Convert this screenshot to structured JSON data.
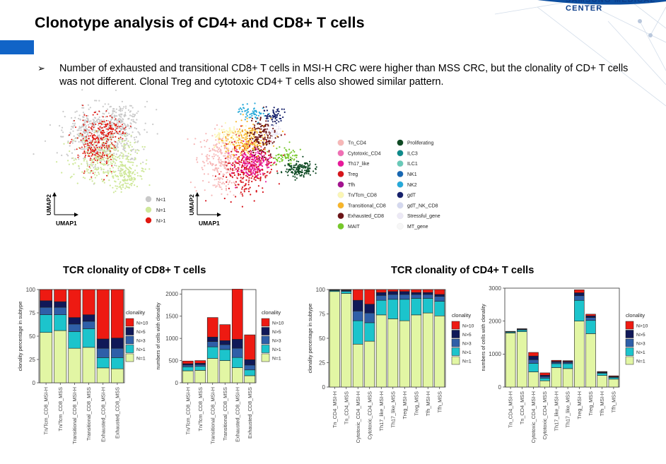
{
  "header": {
    "title": "Clonotype analysis of CD4+ and CD8+ T cells",
    "brand": "SAMSUNG MEDICAL CENTER",
    "bullet_symbol": "➢",
    "bullet_text": "Number of exhausted and transitional CD8+ T cells in MSI-H CRC were higher than MSS CRC, but the clonality of CD+ T cells was not different. Clonal Treg and cytotoxic CD4+ T cells also showed similar pattern."
  },
  "colors": {
    "N=1": "#e2f6a4",
    "N>1": "#1cc4cc",
    "N>3": "#2f5fa8",
    "N>5": "#101858",
    "N>10": "#ee1a12",
    "umap_gray": "#c9c9c9",
    "umap_green": "#cfe89a",
    "umap_red": "#e11810"
  },
  "umap": {
    "x_label": "UMAP1",
    "y_label": "UMAP2",
    "clonality_legend": [
      {
        "label": "N<1",
        "color": "#c9c9c9"
      },
      {
        "label": "N=1",
        "color": "#cfe89a"
      },
      {
        "label": "N>1",
        "color": "#e11810"
      }
    ],
    "celltype_legend_left": [
      {
        "label": "Tn_CD4",
        "color": "#f7b7b7"
      },
      {
        "label": "Cytotoxic_CD4",
        "color": "#f06fb4"
      },
      {
        "label": "Th17_like",
        "color": "#e8199a"
      },
      {
        "label": "Treg",
        "color": "#d7141b"
      },
      {
        "label": "Tfh",
        "color": "#a3128f"
      },
      {
        "label": "Tn/Tcm_CD8",
        "color": "#fbf6b4"
      },
      {
        "label": "Transitional_CD8",
        "color": "#f7b52a"
      },
      {
        "label": "Exhausted_CD8",
        "color": "#6b1417"
      },
      {
        "label": "MAIT",
        "color": "#76c82a"
      }
    ],
    "celltype_legend_right": [
      {
        "label": "Proliferating",
        "color": "#0f4a24"
      },
      {
        "label": "ILC3",
        "color": "#0e8a8a"
      },
      {
        "label": "ILC1",
        "color": "#68c9b8"
      },
      {
        "label": "NK1",
        "color": "#1767b2"
      },
      {
        "label": "NK2",
        "color": "#26a9d9"
      },
      {
        "label": "gdT",
        "color": "#15206b"
      },
      {
        "label": "gdT_NK_CD8",
        "color": "#d4d8ef"
      },
      {
        "label": "Stressful_gene",
        "color": "#ece9f6"
      },
      {
        "label": "MT_gene",
        "color": "#f7f7f7"
      }
    ]
  },
  "sections": {
    "cd8_title": "TCR clonality of CD8+ T cells",
    "cd4_title": "TCR clonality of CD4+ T cells"
  },
  "chart_data": [
    {
      "type": "bar",
      "stacked": true,
      "title": "TCR clonality of CD8+ T cells",
      "ylabel": "clonality percentage in subtype",
      "ylim": [
        0,
        100
      ],
      "yticks": [
        0,
        25,
        50,
        75,
        100
      ],
      "categories": [
        "Tn/Tcm_CD8_MSI-H",
        "Tn/Tcm_CD8_MSS",
        "Transitional_CD8_MSI-H",
        "Transitional_CD8_MSS",
        "Exhausted_CD8_MSI-H",
        "Exhausted_CD8_MSS"
      ],
      "legend_title": "clonality",
      "series": [
        {
          "name": "N=1",
          "values": [
            54,
            56,
            37,
            38,
            16,
            15
          ]
        },
        {
          "name": "N>1",
          "values": [
            19,
            17,
            18,
            20,
            11,
            12
          ]
        },
        {
          "name": "N>3",
          "values": [
            8,
            8,
            8,
            8,
            10,
            10
          ]
        },
        {
          "name": "N>5",
          "values": [
            7,
            6,
            7,
            7,
            10,
            11
          ]
        },
        {
          "name": "N>10",
          "values": [
            12,
            13,
            30,
            27,
            53,
            52
          ]
        }
      ]
    },
    {
      "type": "bar",
      "stacked": true,
      "title": "TCR clonality of CD8+ T cells",
      "ylabel": "numbers of cells with clonality",
      "ylim": [
        0,
        2100
      ],
      "yticks": [
        0,
        500,
        1000,
        1500,
        2000
      ],
      "categories": [
        "Tn/Tcm_CD8_MSI-H",
        "Tn/Tcm_CD8_MSS",
        "Transitional_CD8_MSI-H",
        "Transitional_CD8_MSS",
        "Exhausted_CD8_MSI-H",
        "Exhausted_CD8_MSS"
      ],
      "legend_title": "clonality",
      "series": [
        {
          "name": "N=1",
          "values": [
            270,
            280,
            550,
            500,
            340,
            160
          ]
        },
        {
          "name": "N>1",
          "values": [
            90,
            90,
            260,
            250,
            230,
            130
          ]
        },
        {
          "name": "N>3",
          "values": [
            40,
            40,
            120,
            110,
            210,
            110
          ]
        },
        {
          "name": "N>5",
          "values": [
            30,
            30,
            100,
            90,
            200,
            120
          ]
        },
        {
          "name": "N>10",
          "values": [
            60,
            60,
            440,
            360,
            1130,
            560
          ]
        }
      ]
    },
    {
      "type": "bar",
      "stacked": true,
      "title": "TCR clonality of CD4+ T cells",
      "ylabel": "clonality percentage in subtype",
      "ylim": [
        0,
        100
      ],
      "yticks": [
        0,
        25,
        50,
        75,
        100
      ],
      "categories": [
        "Tn_CD4_MSI-H",
        "Tn_CD4_MSS",
        "Cytotoxic_CD4_MSI-H",
        "Cytotoxic_CD4_MSS",
        "Th17_like_MSI-H",
        "Th17_like_MSS",
        "Treg_MSI-H",
        "Treg_MSS",
        "Tfh_MSI-H",
        "Tfh_MSS"
      ],
      "legend_title": "clonality",
      "series": [
        {
          "name": "N=1",
          "values": [
            98,
            96,
            44,
            47,
            74,
            70,
            68,
            74,
            76,
            73
          ]
        },
        {
          "name": "N>1",
          "values": [
            1,
            2,
            24,
            19,
            15,
            20,
            22,
            17,
            15,
            15
          ]
        },
        {
          "name": "N>3",
          "values": [
            0.5,
            1,
            10,
            10,
            5,
            5,
            5,
            4,
            4,
            5
          ]
        },
        {
          "name": "N>5",
          "values": [
            0.3,
            0.5,
            11,
            9,
            3,
            3,
            3,
            2,
            2,
            2
          ]
        },
        {
          "name": "N>10",
          "values": [
            0.2,
            0.5,
            11,
            15,
            3,
            2,
            2,
            3,
            3,
            5
          ]
        }
      ]
    },
    {
      "type": "bar",
      "stacked": true,
      "title": "TCR clonality of CD4+ T cells",
      "ylabel": "numbers of cells with clonality",
      "ylim": [
        0,
        3000
      ],
      "yticks": [
        0,
        1000,
        2000,
        3000
      ],
      "categories": [
        "Tn_CD4_MSI-H",
        "Tn_CD4_MSS",
        "Cytotoxic_CD4_MSI-H",
        "Cytotoxic_CD4_MSS",
        "Th17_like_MSI-H",
        "Th17_like_MSS",
        "Treg_MSI-H",
        "Treg_MSS",
        "Tfh_MSI-H",
        "Tfh_MSS"
      ],
      "legend_title": "clonality",
      "series": [
        {
          "name": "N=1",
          "values": [
            1640,
            1680,
            460,
            190,
            590,
            560,
            2000,
            1620,
            350,
            240
          ]
        },
        {
          "name": "N>1",
          "values": [
            30,
            50,
            260,
            80,
            120,
            150,
            630,
            400,
            70,
            50
          ]
        },
        {
          "name": "N>3",
          "values": [
            10,
            20,
            110,
            50,
            40,
            40,
            140,
            90,
            20,
            20
          ]
        },
        {
          "name": "N>5",
          "values": [
            5,
            10,
            110,
            40,
            30,
            30,
            90,
            50,
            15,
            10
          ]
        },
        {
          "name": "N>10",
          "values": [
            5,
            10,
            110,
            70,
            30,
            20,
            90,
            50,
            15,
            20
          ]
        }
      ]
    }
  ]
}
